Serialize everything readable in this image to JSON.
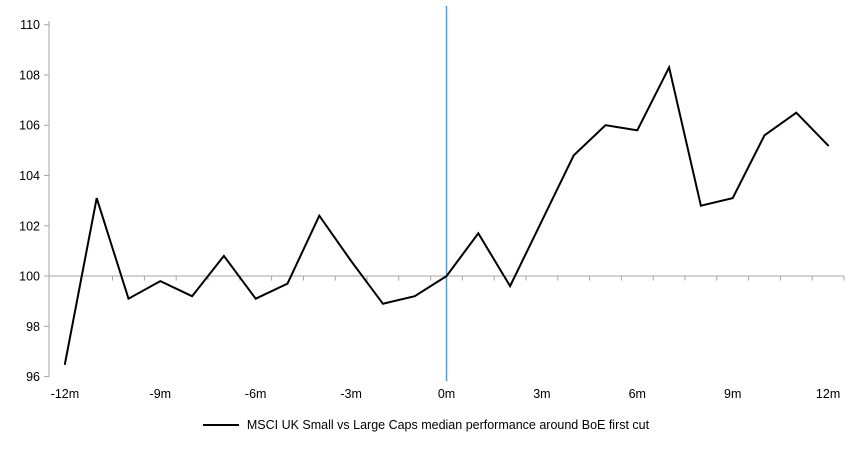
{
  "chart_data": {
    "type": "line",
    "title": "",
    "x": [
      -12,
      -11,
      -10,
      -9,
      -8,
      -7,
      -6,
      -5,
      -4,
      -3,
      -2,
      -1,
      0,
      1,
      2,
      3,
      4,
      5,
      6,
      7,
      8,
      9,
      10,
      11,
      12
    ],
    "series": [
      {
        "name": "MSCI UK Small vs Large Caps median performance around BoE first cut",
        "color": "#000000",
        "values": [
          96.5,
          103.1,
          99.1,
          99.8,
          99.2,
          100.8,
          99.1,
          99.7,
          102.4,
          100.6,
          98.9,
          99.2,
          100.0,
          101.7,
          99.6,
          102.2,
          104.8,
          106.0,
          105.8,
          108.3,
          102.8,
          103.1,
          105.6,
          106.5,
          105.2
        ]
      }
    ],
    "xlim": [
      -12.5,
      12.5
    ],
    "ylim": [
      96,
      110
    ],
    "y_ticks": [
      96,
      98,
      100,
      102,
      104,
      106,
      108,
      110
    ],
    "x_tick_values": [
      -12,
      -9,
      -6,
      -3,
      0,
      3,
      6,
      9,
      12
    ],
    "x_tick_labels": [
      "-12m",
      "-9m",
      "-6m",
      "-3m",
      "0m",
      "3m",
      "6m",
      "9m",
      "12m"
    ],
    "baseline_value": 100,
    "event_line_x": 0,
    "event_line_color": "#5b9bd5",
    "axis_color": "#a6a6a6",
    "tick_label_color": "#000000",
    "grid": "off",
    "legend_position": "bottom-center"
  }
}
